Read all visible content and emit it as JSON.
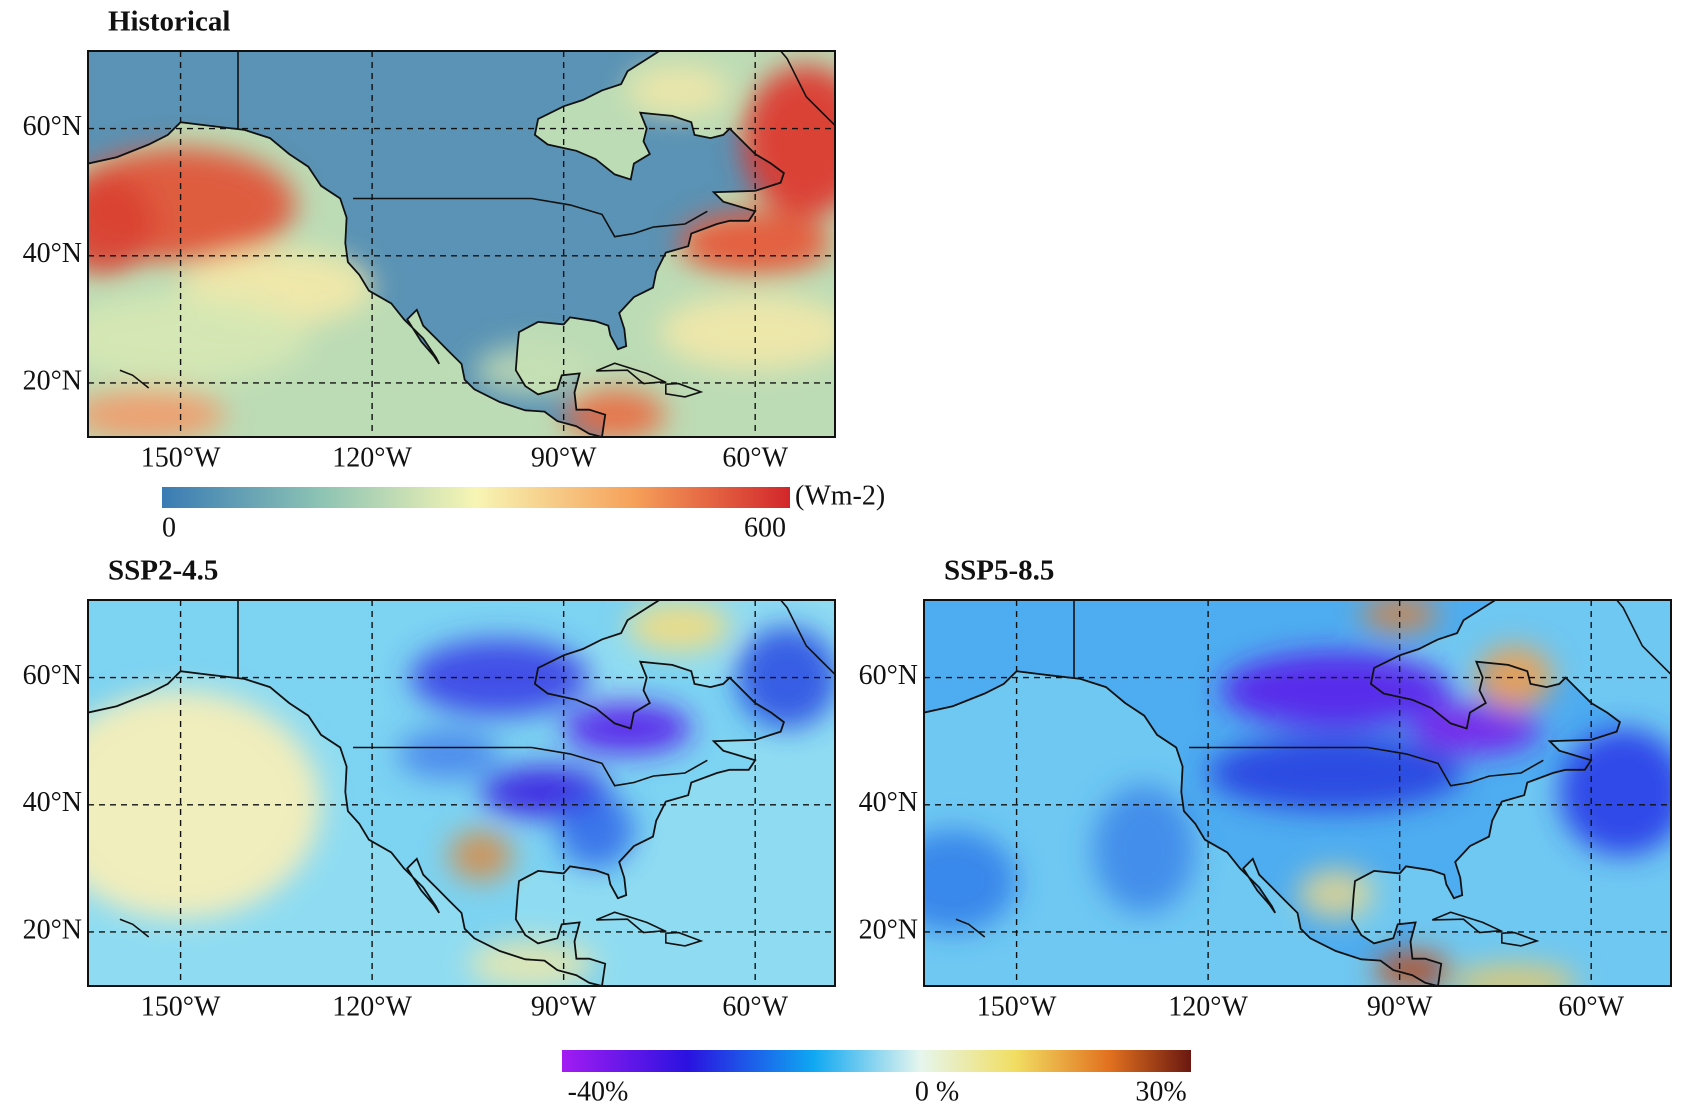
{
  "panels": [
    {
      "title": "Historical"
    },
    {
      "title": "SSP2-4.5"
    },
    {
      "title": "SSP5-8.5"
    }
  ],
  "lat_ticks": [
    {
      "value": 60,
      "label": "60°N"
    },
    {
      "value": 40,
      "label": "40°N"
    },
    {
      "value": 20,
      "label": "20°N"
    }
  ],
  "lon_ticks": [
    {
      "value": -150,
      "label": "150°W"
    },
    {
      "value": -120,
      "label": "120°W"
    },
    {
      "value": -90,
      "label": "90°W"
    },
    {
      "value": -60,
      "label": "60°W"
    }
  ],
  "colorbars": [
    {
      "unit": "(Wm-2)",
      "labels": [
        "0",
        "600"
      ]
    },
    {
      "labels": [
        "-40%",
        "0 %",
        "30%"
      ]
    }
  ]
}
